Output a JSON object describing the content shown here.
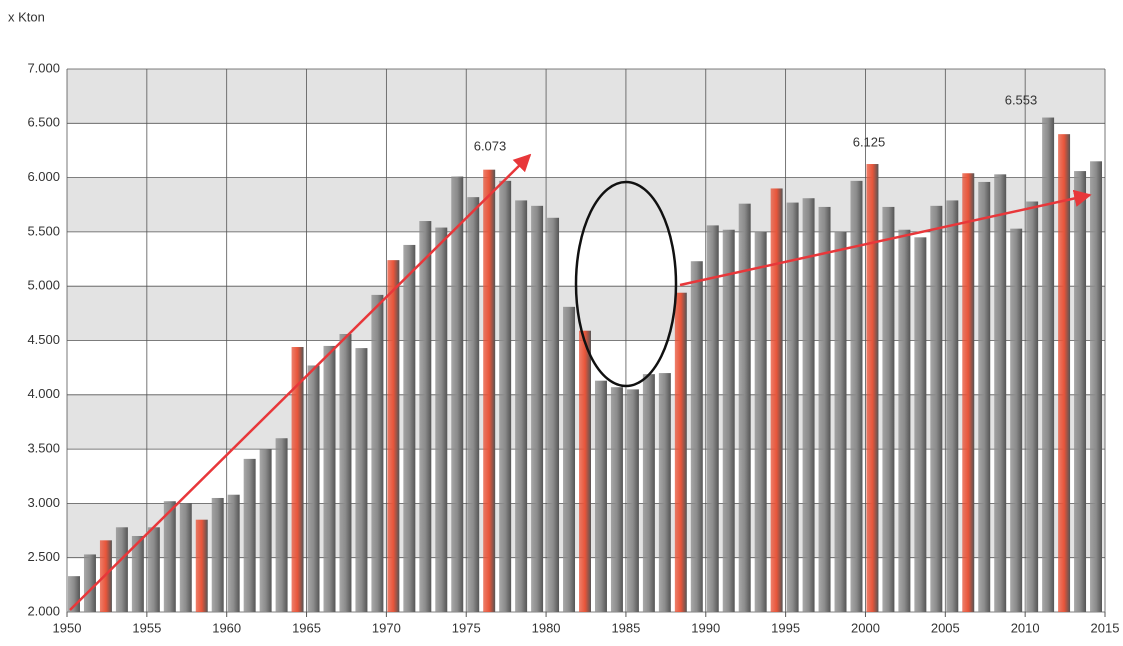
{
  "chart_data": {
    "type": "bar",
    "y_axis_label": "x Kton",
    "x": [
      1950,
      1951,
      1952,
      1953,
      1954,
      1955,
      1956,
      1957,
      1958,
      1959,
      1960,
      1961,
      1962,
      1963,
      1964,
      1965,
      1966,
      1967,
      1968,
      1969,
      1970,
      1971,
      1972,
      1973,
      1974,
      1975,
      1976,
      1977,
      1978,
      1979,
      1980,
      1981,
      1982,
      1983,
      1984,
      1985,
      1986,
      1987,
      1988,
      1989,
      1990,
      1991,
      1992,
      1993,
      1994,
      1995,
      1996,
      1997,
      1998,
      1999,
      2000,
      2001,
      2002,
      2003,
      2004,
      2005,
      2006,
      2007,
      2008,
      2009,
      2010,
      2011,
      2012,
      2013,
      2014
    ],
    "values": [
      2330,
      2530,
      2660,
      2780,
      2700,
      2780,
      3020,
      3000,
      2850,
      3050,
      3080,
      3410,
      3500,
      3600,
      4440,
      4270,
      4450,
      4560,
      4430,
      4920,
      5240,
      5380,
      5600,
      5540,
      6010,
      5820,
      6073,
      5970,
      5790,
      5740,
      5630,
      4810,
      4590,
      4130,
      4070,
      4050,
      4190,
      4200,
      4940,
      5230,
      5560,
      5520,
      5760,
      5500,
      5900,
      5770,
      5810,
      5730,
      5500,
      5970,
      6125,
      5730,
      5520,
      5450,
      5740,
      5790,
      6040,
      5960,
      6030,
      5530,
      5780,
      6553,
      6400,
      6060,
      6150
    ],
    "colors": [
      "#8c8c8c",
      "#8c8c8c",
      "#e8553a",
      "#8c8c8c",
      "#8c8c8c",
      "#8c8c8c",
      "#8c8c8c",
      "#8c8c8c",
      "#e8553a",
      "#8c8c8c",
      "#8c8c8c",
      "#8c8c8c",
      "#8c8c8c",
      "#8c8c8c",
      "#e8553a",
      "#8c8c8c",
      "#8c8c8c",
      "#8c8c8c",
      "#8c8c8c",
      "#8c8c8c",
      "#e8553a",
      "#8c8c8c",
      "#8c8c8c",
      "#8c8c8c",
      "#8c8c8c",
      "#8c8c8c",
      "#e8553a",
      "#8c8c8c",
      "#8c8c8c",
      "#8c8c8c",
      "#8c8c8c",
      "#8c8c8c",
      "#e8553a",
      "#8c8c8c",
      "#8c8c8c",
      "#8c8c8c",
      "#8c8c8c",
      "#8c8c8c",
      "#e8553a",
      "#8c8c8c",
      "#8c8c8c",
      "#8c8c8c",
      "#8c8c8c",
      "#8c8c8c",
      "#e8553a",
      "#8c8c8c",
      "#8c8c8c",
      "#8c8c8c",
      "#8c8c8c",
      "#8c8c8c",
      "#e8553a",
      "#8c8c8c",
      "#8c8c8c",
      "#8c8c8c",
      "#8c8c8c",
      "#8c8c8c",
      "#e8553a",
      "#8c8c8c",
      "#8c8c8c",
      "#8c8c8c",
      "#8c8c8c",
      "#8c8c8c",
      "#e8553a",
      "#8c8c8c",
      "#8c8c8c"
    ],
    "xlim": [
      1950,
      2015
    ],
    "xticks": [
      1950,
      1955,
      1960,
      1965,
      1970,
      1975,
      1980,
      1985,
      1990,
      1995,
      2000,
      2005,
      2010,
      2015
    ],
    "ylim": [
      2000,
      7000
    ],
    "yticks": [
      {
        "value": 2000,
        "label": "2.000"
      },
      {
        "value": 2500,
        "label": "2.500"
      },
      {
        "value": 3000,
        "label": "3.000"
      },
      {
        "value": 3500,
        "label": "3.500"
      },
      {
        "value": 4000,
        "label": "4.000"
      },
      {
        "value": 4500,
        "label": "4.500"
      },
      {
        "value": 5000,
        "label": "5.000"
      },
      {
        "value": 5500,
        "label": "5.500"
      },
      {
        "value": 6000,
        "label": "6.000"
      },
      {
        "value": 6500,
        "label": "6.500"
      },
      {
        "value": 7000,
        "label": "7.000"
      }
    ],
    "grid": true,
    "annotations": [
      "6.073",
      "6.125",
      "6.553"
    ]
  }
}
